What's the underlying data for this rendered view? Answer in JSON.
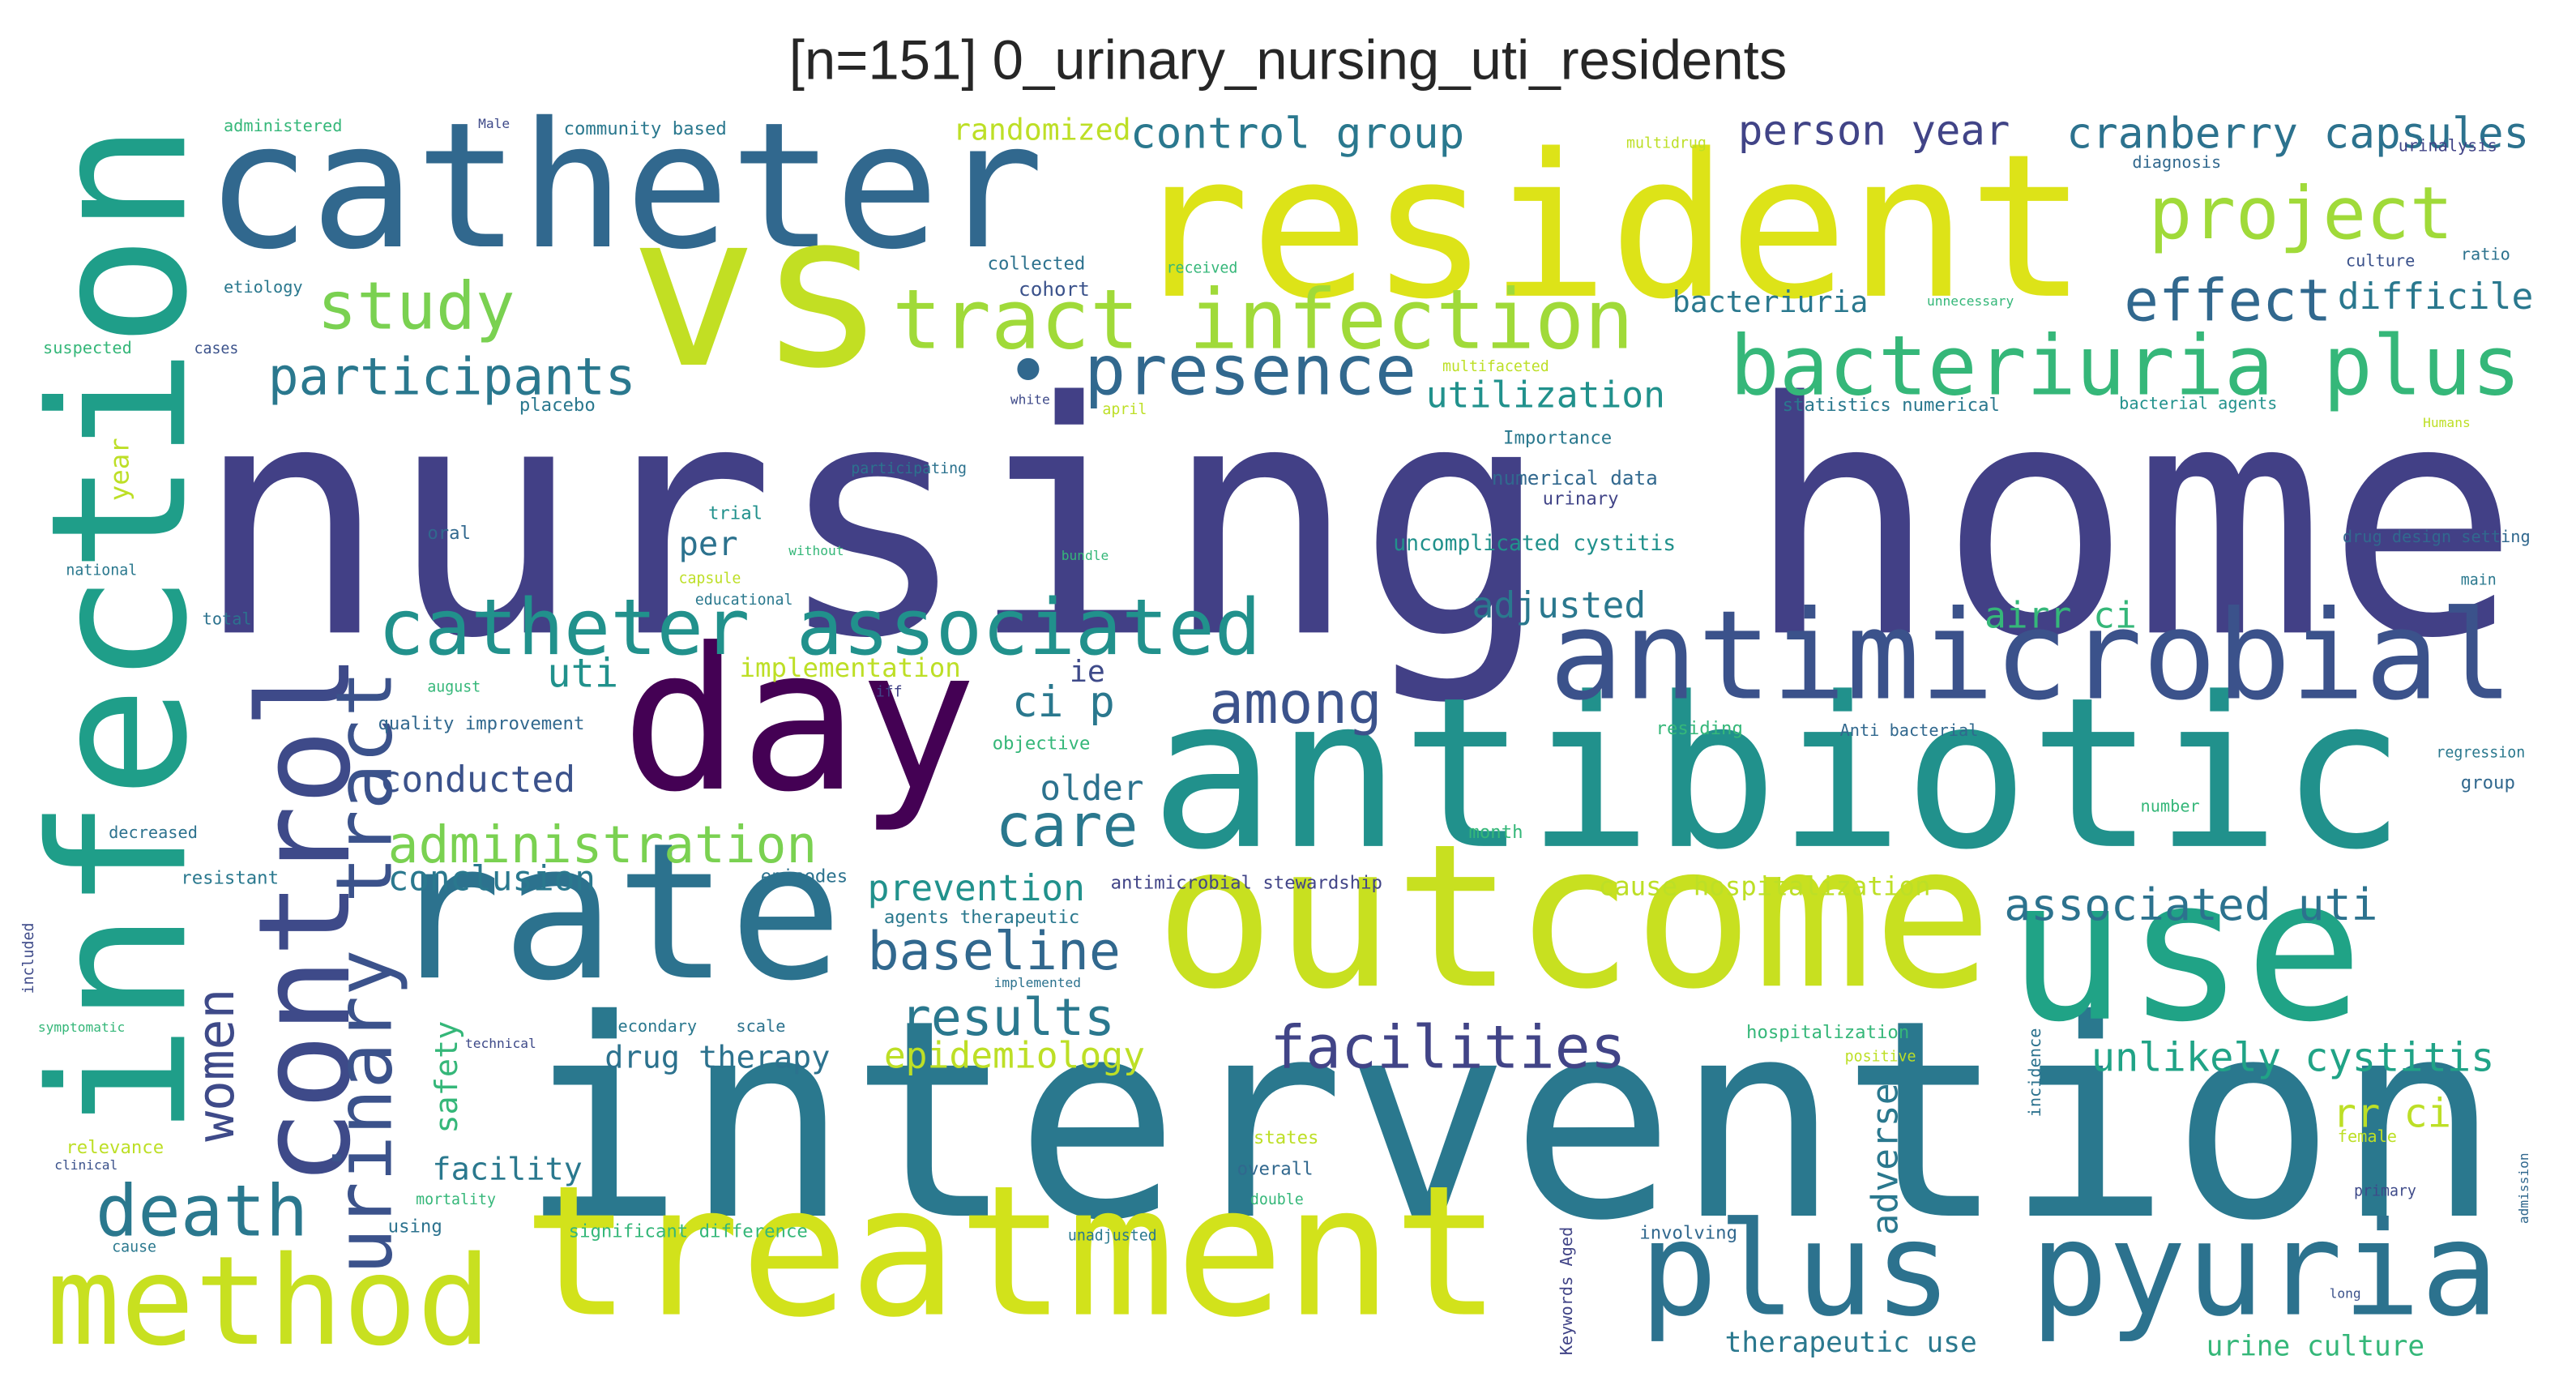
{
  "title": "[n=151] 0_urinary_nursing_uti_residents",
  "words": [
    "nursing home",
    "intervention",
    "antibiotic",
    "resident",
    "catheter",
    "vs",
    "infection",
    "day",
    "rate",
    "outcome",
    "use",
    "treatment",
    "method",
    "plus pyuria",
    "antimicrobial",
    "control",
    "urinary tract",
    "catheter associated",
    "bacteriuria plus",
    "tract infection",
    "•",
    "presence",
    "project",
    "cranberry capsules",
    "person year",
    "control group",
    "randomized",
    "study",
    "participants",
    "effect",
    "difficile",
    "bacteriuria",
    "utilization",
    "among",
    "care",
    "associated uti",
    "facilities",
    "unlikely cystitis",
    "death",
    "women",
    "uti",
    "administration",
    "conducted",
    "conclusion",
    "baseline",
    "results",
    "epidemiology",
    "drug therapy",
    "prevention",
    "older",
    "ci p",
    "ie",
    "implementation",
    "adjusted",
    "airr ci",
    "per",
    "safety",
    "facility",
    "adverse",
    "rr ci",
    "cause hospitalization",
    "antimicrobial stewardship",
    "agents therapeutic",
    "therapeutic use",
    "urine culture",
    "uncomplicated cystitis",
    "numerical data",
    "administered",
    "Male",
    "community based",
    "collected",
    "received",
    "etiology",
    "suspected",
    "cases",
    "placebo",
    "april",
    "white",
    "statistics numerical",
    "bacterial agents",
    "Importance",
    "Humans",
    "urinary",
    "trial",
    "oral",
    "national",
    "capsule",
    "bundle",
    "drug design setting",
    "main",
    "total",
    "quality improvement",
    "august",
    "objective",
    "residing",
    "Anti bacterial",
    "regression",
    "group",
    "decreased",
    "resistant",
    "month",
    "number",
    "episodes",
    "implemented",
    "secondary",
    "scale",
    "technical",
    "hospitalization",
    "positive",
    "relevance",
    "clinical",
    "states",
    "overall",
    "double",
    "mortality",
    "using",
    "significant difference",
    "unadjusted",
    "involving",
    "cause",
    "female",
    "primary",
    "diagnosis",
    "urinalysis",
    "culture",
    "ratio",
    "multidrug",
    "unnecessary",
    "cohort",
    "year",
    "Keywords Aged",
    "incidence",
    "included",
    "symptomatic",
    "iff",
    "educational",
    "long",
    "admission",
    "multifaceted",
    "participating",
    "without"
  ]
}
